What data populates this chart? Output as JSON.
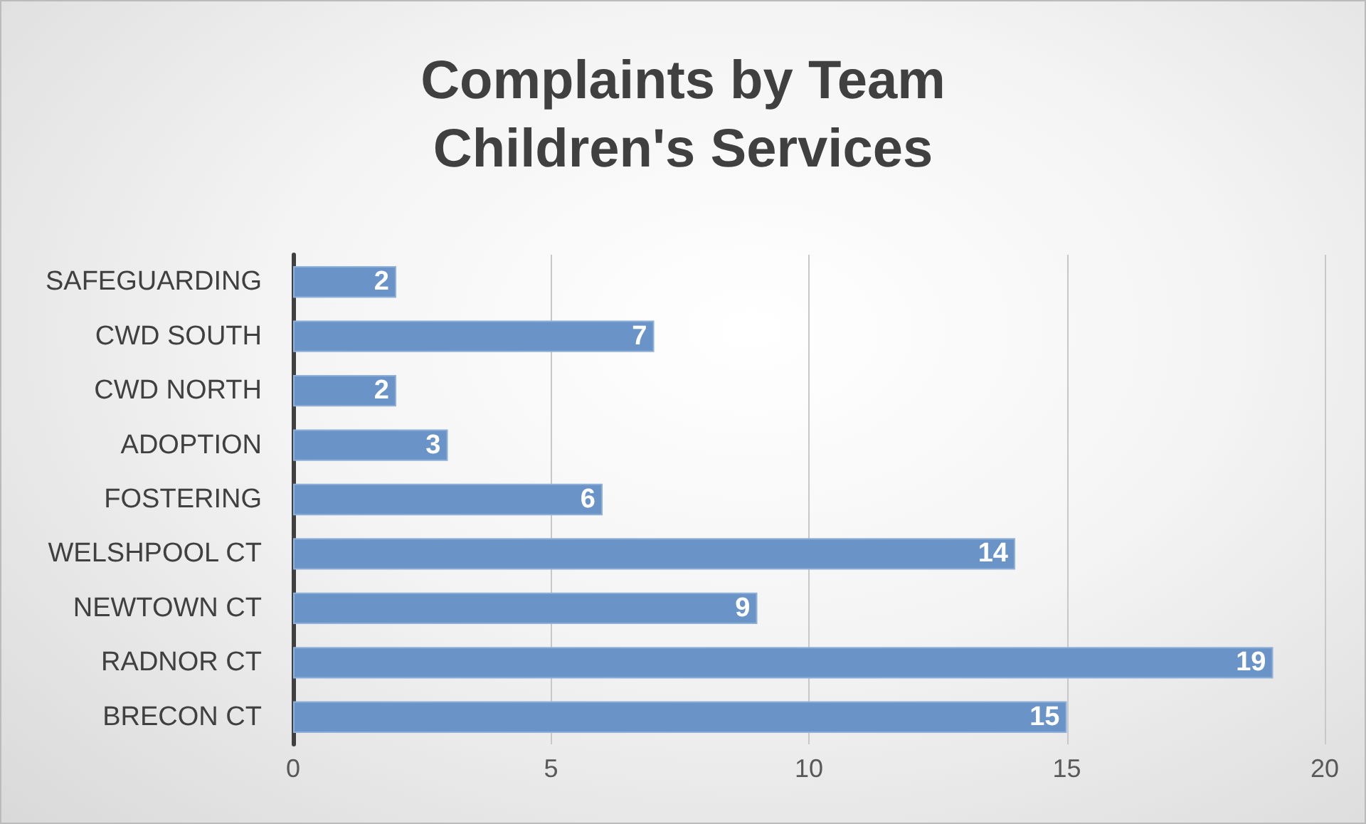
{
  "chart_data": {
    "type": "bar",
    "orientation": "horizontal",
    "title": "Complaints by Team",
    "subtitle": "Children's Services",
    "categories": [
      "SAFEGUARDING",
      "CWD SOUTH",
      "CWD NORTH",
      "ADOPTION",
      "FOSTERING",
      "WELSHPOOL CT",
      "NEWTOWN CT",
      "RADNOR CT",
      "BRECON CT"
    ],
    "values": [
      2,
      7,
      2,
      3,
      6,
      14,
      9,
      19,
      15
    ],
    "color": "#6a93c7",
    "xlim": [
      0,
      20
    ],
    "xticks": [
      0,
      5,
      10,
      15,
      20
    ],
    "grid": "x",
    "data_labels": true
  }
}
